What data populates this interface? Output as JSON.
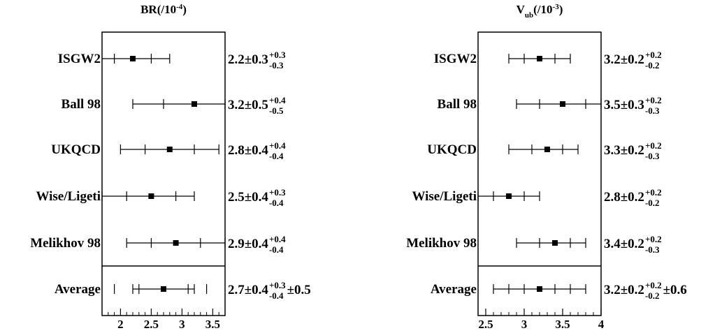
{
  "chart_data": [
    {
      "type": "scatter",
      "title": "BR(/10",
      "title_exp": "-4",
      "title_close": ")",
      "xlim": [
        1.7,
        3.7
      ],
      "xticks": [
        2,
        2.5,
        3,
        3.5
      ],
      "xtick_labels": [
        "2",
        "2.5",
        "3",
        "3.5"
      ],
      "grid": false,
      "rows": [
        {
          "label": "ISGW2",
          "value": 2.2,
          "stat": 0.3,
          "sys_plus": 0.3,
          "sys_minus": 0.3,
          "text_main": "2.2±0.3",
          "text_sup": "+0.3",
          "text_sub": "-0.3",
          "text_extra": ""
        },
        {
          "label": "Ball 98",
          "value": 3.2,
          "stat": 0.5,
          "sys_plus": 0.4,
          "sys_minus": 0.5,
          "text_main": "3.2±0.5",
          "text_sup": "+0.4",
          "text_sub": "-0.5",
          "text_extra": ""
        },
        {
          "label": "UKQCD",
          "value": 2.8,
          "stat": 0.4,
          "sys_plus": 0.4,
          "sys_minus": 0.4,
          "text_main": "2.8±0.4",
          "text_sup": "+0.4",
          "text_sub": "-0.4",
          "text_extra": ""
        },
        {
          "label": "Wise/Ligeti",
          "value": 2.5,
          "stat": 0.4,
          "sys_plus": 0.3,
          "sys_minus": 0.4,
          "text_main": "2.5±0.4",
          "text_sup": "+0.3",
          "text_sub": "-0.4",
          "text_extra": ""
        },
        {
          "label": "Melikhov 98",
          "value": 2.9,
          "stat": 0.4,
          "sys_plus": 0.4,
          "sys_minus": 0.4,
          "text_main": "2.9±0.4",
          "text_sup": "+0.4",
          "text_sub": "-0.4",
          "text_extra": ""
        },
        {
          "label": "Average",
          "value": 2.7,
          "stat": 0.4,
          "sys_plus": 0.3,
          "sys_minus": 0.4,
          "model": 0.5,
          "text_main": "2.7±0.4",
          "text_sup": "+0.3",
          "text_sub": "-0.4",
          "text_extra": "±0.5"
        }
      ]
    },
    {
      "type": "scatter",
      "title": "V",
      "title_sub": "ub",
      "title_rest": "(/10",
      "title_exp": "-3",
      "title_close": ")",
      "xlim": [
        2.4,
        4.0
      ],
      "xticks": [
        2.5,
        3,
        3.5,
        4
      ],
      "xtick_labels": [
        "2.5",
        "3",
        "3.5",
        "4"
      ],
      "grid": false,
      "rows": [
        {
          "label": "ISGW2",
          "value": 3.2,
          "stat": 0.2,
          "sys_plus": 0.2,
          "sys_minus": 0.2,
          "text_main": "3.2±0.2",
          "text_sup": "+0.2",
          "text_sub": "-0.2",
          "text_extra": ""
        },
        {
          "label": "Ball 98",
          "value": 3.5,
          "stat": 0.3,
          "sys_plus": 0.2,
          "sys_minus": 0.3,
          "text_main": "3.5±0.3",
          "text_sup": "+0.2",
          "text_sub": "-0.3",
          "text_extra": ""
        },
        {
          "label": "UKQCD",
          "value": 3.3,
          "stat": 0.2,
          "sys_plus": 0.2,
          "sys_minus": 0.3,
          "text_main": "3.3±0.2",
          "text_sup": "+0.2",
          "text_sub": "-0.3",
          "text_extra": ""
        },
        {
          "label": "Wise/Ligeti",
          "value": 2.8,
          "stat": 0.2,
          "sys_plus": 0.2,
          "sys_minus": 0.2,
          "text_main": "2.8±0.2",
          "text_sup": "+0.2",
          "text_sub": "-0.2",
          "text_extra": ""
        },
        {
          "label": "Melikhov 98",
          "value": 3.4,
          "stat": 0.2,
          "sys_plus": 0.2,
          "sys_minus": 0.3,
          "text_main": "3.4±0.2",
          "text_sup": "+0.2",
          "text_sub": "-0.3",
          "text_extra": ""
        },
        {
          "label": "Average",
          "value": 3.2,
          "stat": 0.2,
          "sys_plus": 0.2,
          "sys_minus": 0.2,
          "model": 0.6,
          "text_main": "3.2±0.2",
          "text_sup": "+0.2",
          "text_sub": "-0.2",
          "text_extra": "±0.6"
        }
      ]
    }
  ]
}
